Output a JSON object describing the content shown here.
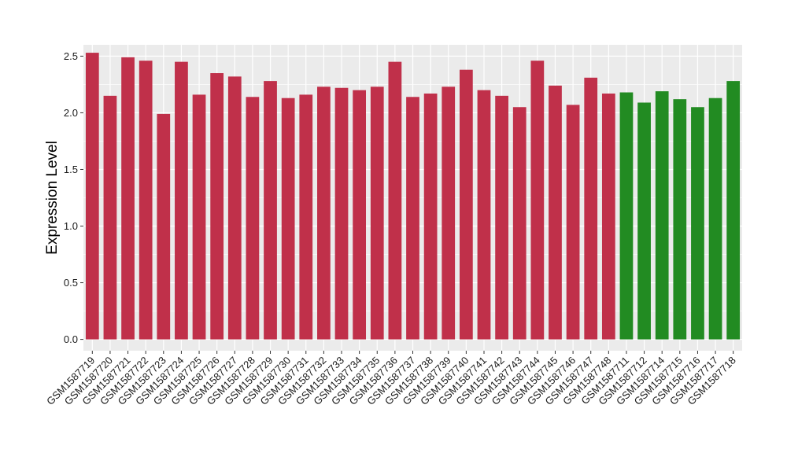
{
  "chart_data": {
    "type": "bar",
    "title": "",
    "xlabel": "",
    "ylabel": "Expression Level",
    "ylim": [
      -0.1,
      2.6
    ],
    "yticks": [
      "0.0",
      "0.5",
      "1.0",
      "1.5",
      "2.0",
      "2.5"
    ],
    "grid": true,
    "legend": "none",
    "colors": {
      "group_a": "#C0304A",
      "group_b": "#228B22",
      "panel": "#EBEBEB",
      "grid": "#FFFFFF"
    },
    "categories": [
      "GSM1587719",
      "GSM1587720",
      "GSM1587721",
      "GSM1587722",
      "GSM1587723",
      "GSM1587724",
      "GSM1587725",
      "GSM1587726",
      "GSM1587727",
      "GSM1587728",
      "GSM1587729",
      "GSM1587730",
      "GSM1587731",
      "GSM1587732",
      "GSM1587733",
      "GSM1587734",
      "GSM1587735",
      "GSM1587736",
      "GSM1587737",
      "GSM1587738",
      "GSM1587739",
      "GSM1587740",
      "GSM1587741",
      "GSM1587742",
      "GSM1587743",
      "GSM1587744",
      "GSM1587745",
      "GSM1587746",
      "GSM1587747",
      "GSM1587748",
      "GSM1587711",
      "GSM1587712",
      "GSM1587714",
      "GSM1587715",
      "GSM1587716",
      "GSM1587717",
      "GSM1587718"
    ],
    "values": [
      2.53,
      2.15,
      2.49,
      2.46,
      1.99,
      2.45,
      2.16,
      2.35,
      2.32,
      2.14,
      2.28,
      2.13,
      2.16,
      2.23,
      2.22,
      2.2,
      2.23,
      2.45,
      2.14,
      2.17,
      2.23,
      2.38,
      2.2,
      2.15,
      2.05,
      2.46,
      2.24,
      2.07,
      2.31,
      2.17,
      2.18,
      2.09,
      2.19,
      2.12,
      2.05,
      2.13,
      2.28
    ],
    "groups": [
      "a",
      "a",
      "a",
      "a",
      "a",
      "a",
      "a",
      "a",
      "a",
      "a",
      "a",
      "a",
      "a",
      "a",
      "a",
      "a",
      "a",
      "a",
      "a",
      "a",
      "a",
      "a",
      "a",
      "a",
      "a",
      "a",
      "a",
      "a",
      "a",
      "a",
      "b",
      "b",
      "b",
      "b",
      "b",
      "b",
      "b"
    ]
  }
}
